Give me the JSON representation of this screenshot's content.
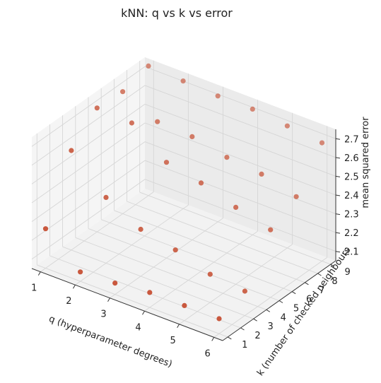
{
  "chart_data": {
    "type": "scatter",
    "projection": "3d",
    "title": "kNN: q vs k vs error",
    "xlabel": "q (hyperparameter degrees)",
    "ylabel": "k (number of checked neighbours",
    "zlabel": "mean squared error",
    "xlim": [
      0.75,
      6.25
    ],
    "ylim": [
      0.6,
      9.4
    ],
    "zlim": [
      2.05,
      2.75
    ],
    "xticks": [
      "1",
      "2",
      "3",
      "4",
      "5",
      "6"
    ],
    "yticks": [
      "1",
      "2",
      "3",
      "4",
      "5",
      "6",
      "7",
      "8",
      "9"
    ],
    "zticks": [
      "2.1",
      "2.2",
      "2.3",
      "2.4",
      "2.5",
      "2.6",
      "2.7"
    ],
    "grid": true,
    "color": "#c8553a",
    "points": [
      {
        "x": 1,
        "y": 1,
        "z": 2.26
      },
      {
        "x": 2,
        "y": 1,
        "z": 2.1
      },
      {
        "x": 3,
        "y": 1,
        "z": 2.11
      },
      {
        "x": 4,
        "y": 1,
        "z": 2.13
      },
      {
        "x": 5,
        "y": 1,
        "z": 2.13
      },
      {
        "x": 6,
        "y": 1,
        "z": 2.13
      },
      {
        "x": 1,
        "y": 3,
        "z": 2.58
      },
      {
        "x": 2,
        "y": 3,
        "z": 2.4
      },
      {
        "x": 3,
        "y": 3,
        "z": 2.3
      },
      {
        "x": 4,
        "y": 3,
        "z": 2.26
      },
      {
        "x": 5,
        "y": 3,
        "z": 2.2
      },
      {
        "x": 6,
        "y": 3,
        "z": 2.18
      },
      {
        "x": 1,
        "y": 5,
        "z": 2.71
      },
      {
        "x": 2,
        "y": 5,
        "z": 2.7
      },
      {
        "x": 3,
        "y": 5,
        "z": 2.56
      },
      {
        "x": 4,
        "y": 5,
        "z": 2.52
      },
      {
        "x": 5,
        "y": 5,
        "z": 2.46
      },
      {
        "x": 6,
        "y": 5,
        "z": 2.41
      },
      {
        "x": 1,
        "y": 7,
        "z": 2.7
      },
      {
        "x": 2,
        "y": 7,
        "z": 2.61
      },
      {
        "x": 3,
        "y": 7,
        "z": 2.6
      },
      {
        "x": 4,
        "y": 7,
        "z": 2.56
      },
      {
        "x": 5,
        "y": 7,
        "z": 2.54
      },
      {
        "x": 6,
        "y": 7,
        "z": 2.49
      },
      {
        "x": 1,
        "y": 9,
        "z": 2.74
      },
      {
        "x": 2,
        "y": 9,
        "z": 2.73
      },
      {
        "x": 3,
        "y": 9,
        "z": 2.72
      },
      {
        "x": 4,
        "y": 9,
        "z": 2.72
      },
      {
        "x": 5,
        "y": 9,
        "z": 2.7
      },
      {
        "x": 6,
        "y": 9,
        "z": 2.68
      }
    ]
  }
}
